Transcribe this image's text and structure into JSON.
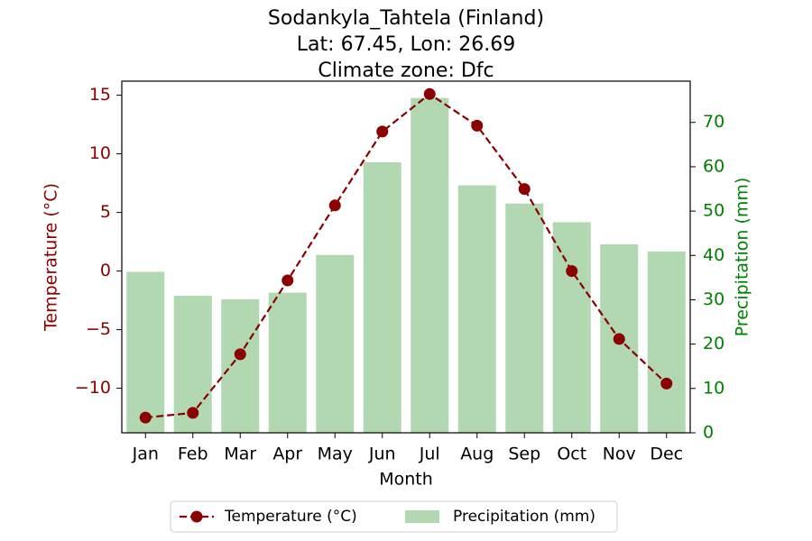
{
  "chart_data": {
    "type": "bar+line",
    "title_lines": [
      "Sodankyla_Tahtela (Finland)",
      "Lat: 67.45, Lon: 26.69",
      "Climate zone: Dfc"
    ],
    "xlabel": "Month",
    "categories": [
      "Jan",
      "Feb",
      "Mar",
      "Apr",
      "May",
      "Jun",
      "Jul",
      "Aug",
      "Sep",
      "Oct",
      "Nov",
      "Dec"
    ],
    "temperature": {
      "name": "Temperature (°C)",
      "axis": "left",
      "ylabel": "Temperature (°C)",
      "ylim": [
        -13.8,
        16.2
      ],
      "ticks": [
        -10,
        -5,
        0,
        5,
        10,
        15
      ],
      "color": "#8b0000",
      "style": "dashed line with circle markers",
      "values": [
        -12.5,
        -12.1,
        -7.1,
        -0.8,
        5.6,
        11.9,
        15.1,
        12.4,
        7.0,
        0.0,
        -5.8,
        -9.6
      ]
    },
    "precipitation": {
      "name": "Precipitation (mm)",
      "axis": "right",
      "ylabel": "Precipitation (mm)",
      "ylim": [
        0,
        79.3
      ],
      "ticks": [
        0,
        10,
        20,
        30,
        40,
        50,
        60,
        70
      ],
      "color": "#b2d8b2",
      "label_color": "#008000",
      "values": [
        36.3,
        30.9,
        30.1,
        31.6,
        40.1,
        61.0,
        75.5,
        55.8,
        51.7,
        47.5,
        42.5,
        40.9
      ]
    },
    "legend": {
      "placement": "bottom-center",
      "entries": [
        "Temperature (°C)",
        "Precipitation (mm)"
      ]
    },
    "grid": false
  }
}
